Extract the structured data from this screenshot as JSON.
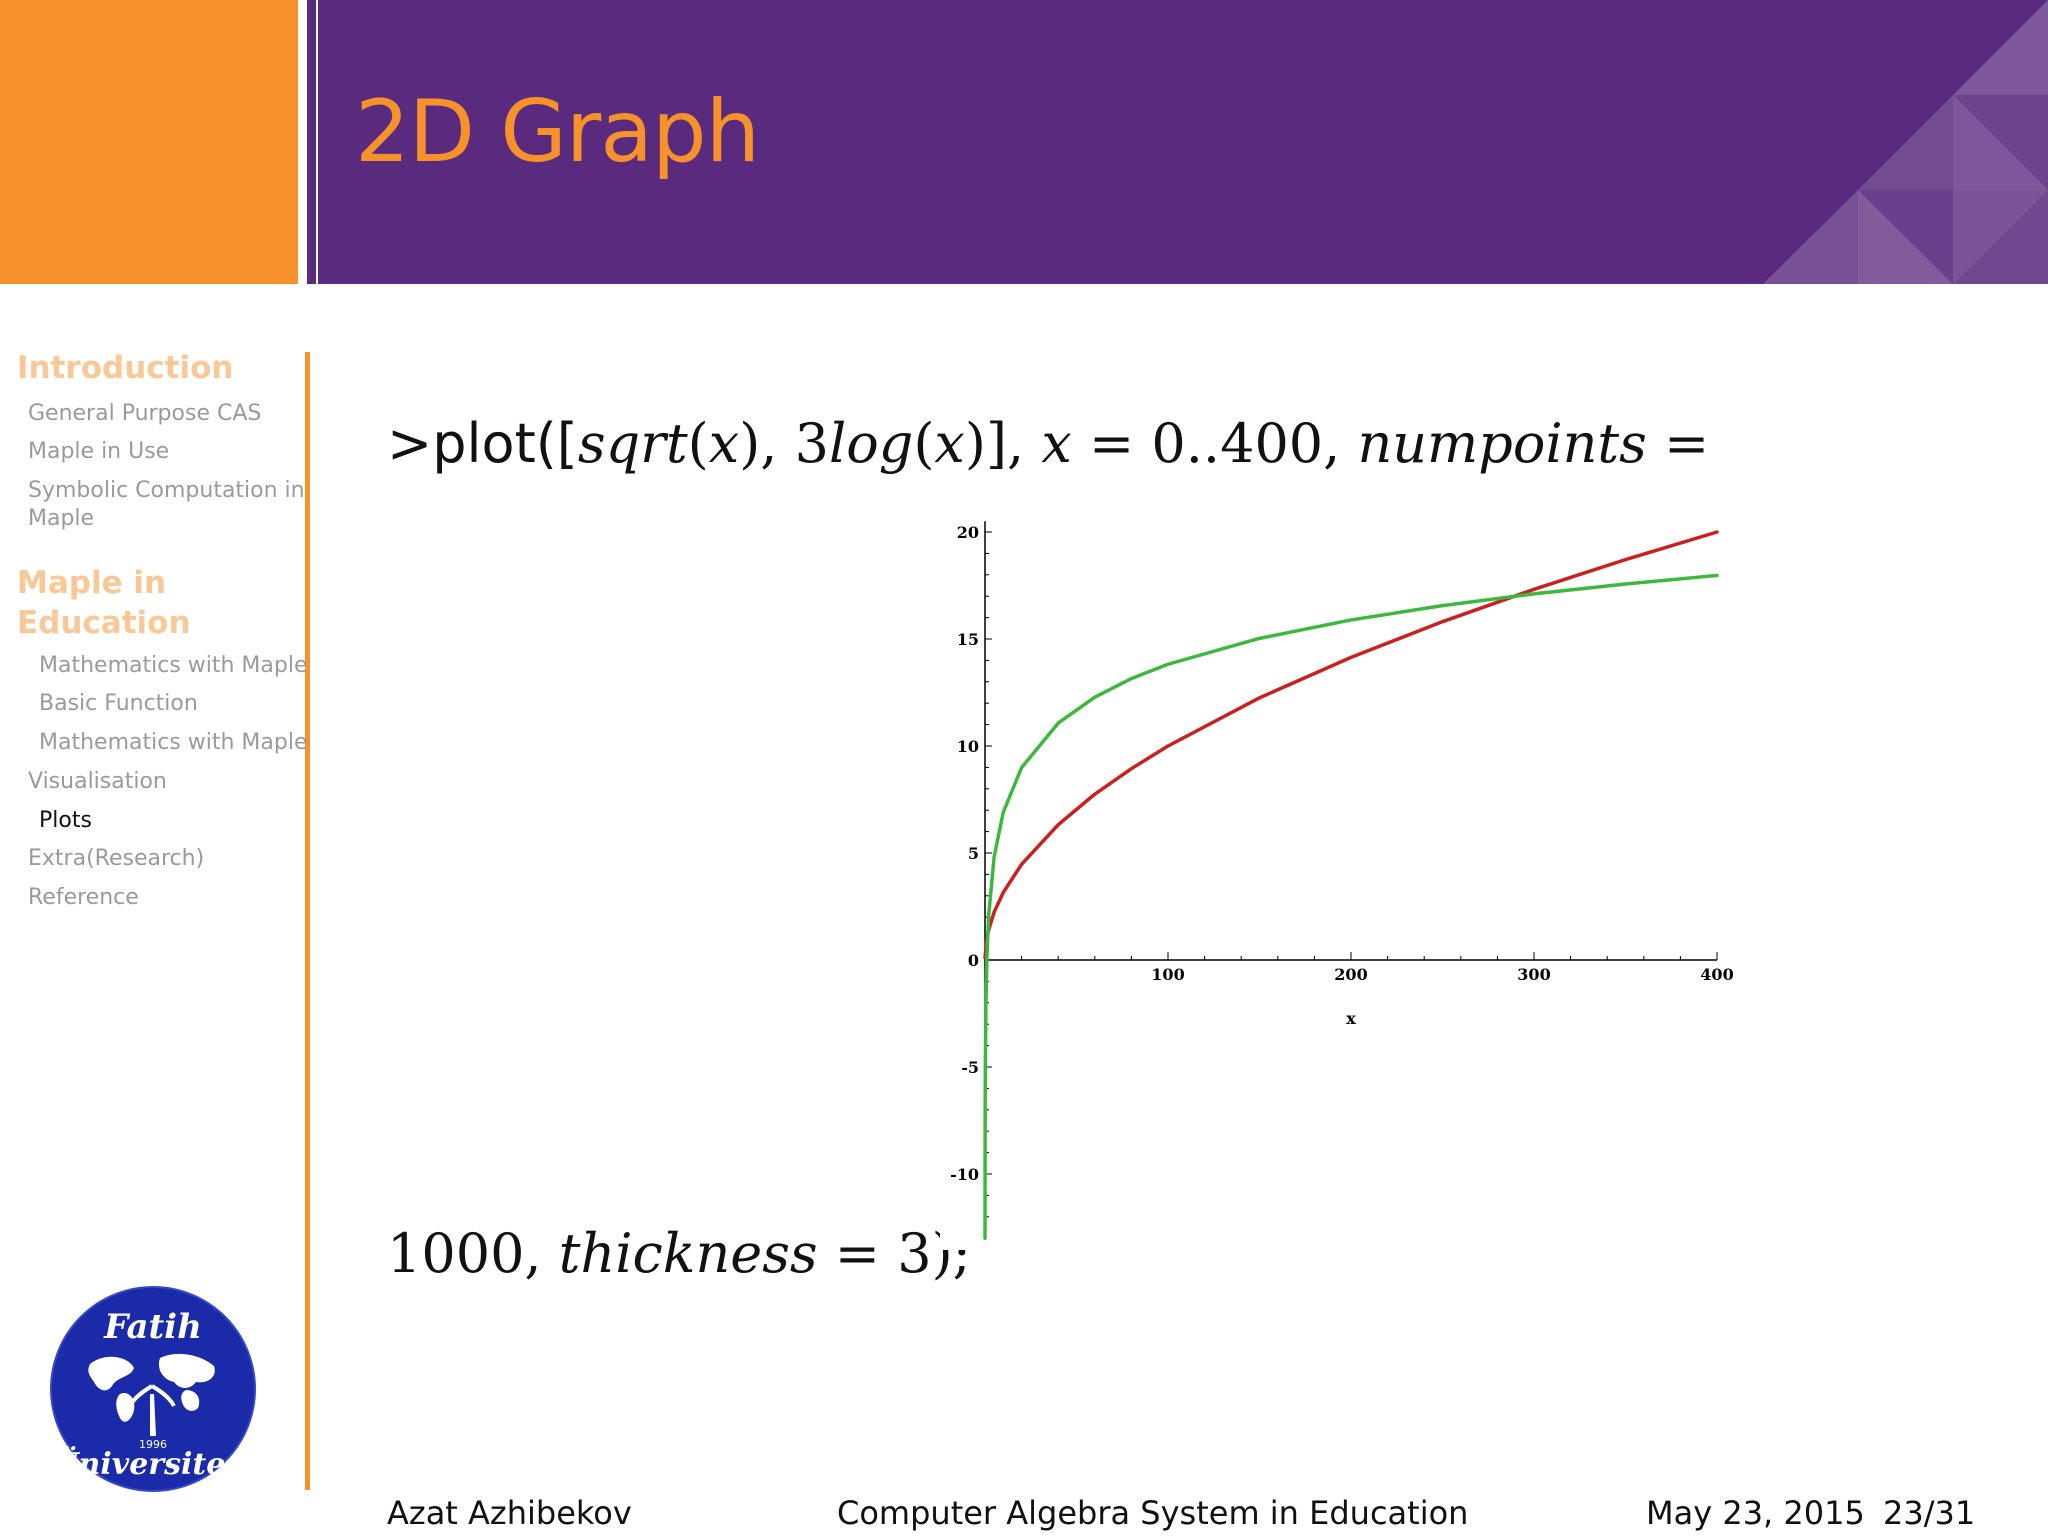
{
  "slide": {
    "title": "2D Graph"
  },
  "sidebar": {
    "sections": [
      {
        "label": "Introduction"
      },
      {
        "label_line1": "Maple in",
        "label_line2": "Education"
      }
    ],
    "items": [
      {
        "label": "General Purpose CAS"
      },
      {
        "label": "Maple in Use"
      },
      {
        "label_line1": "Symbolic Computation in",
        "label_line2": "Maple"
      },
      {
        "label": "Mathematics with Maple"
      },
      {
        "label": "Basic Function"
      },
      {
        "label": "Mathematics with Maple"
      },
      {
        "label": "Visualisation"
      },
      {
        "label": "Plots"
      },
      {
        "label": "Extra(Research)"
      },
      {
        "label": "Reference"
      }
    ],
    "active_item": "Plots"
  },
  "command": {
    "prefix": ">plot([",
    "f1": "sqrt",
    "p1": "(",
    "v1": "x",
    "p2": "), 3",
    "f2": "log",
    "p3": "(",
    "v2": "x",
    "p4": ")], ",
    "v3": "x",
    "eq1": " = 0..400, ",
    "opt1": "numpoints",
    "eq2": " =",
    "line2_num": "1000, ",
    "opt2": "thickness",
    "eq3": " = 3);"
  },
  "chart_data": {
    "type": "line",
    "xlabel": "x",
    "ylabel": "",
    "xlim": [
      0,
      400
    ],
    "ylim": [
      -12.5,
      20.5
    ],
    "x_ticks": [
      100,
      200,
      300,
      400
    ],
    "y_ticks": [
      -10,
      -5,
      0,
      5,
      10,
      15,
      20
    ],
    "grid": false,
    "series": [
      {
        "color": "#cc1f1f",
        "x": [
          0.01,
          1,
          2,
          5,
          10,
          20,
          40,
          60,
          80,
          100,
          150,
          200,
          250,
          300,
          350,
          400
        ],
        "values": [
          0.1,
          1,
          1.41,
          2.24,
          3.16,
          4.47,
          6.32,
          7.75,
          8.94,
          10,
          12.25,
          14.14,
          15.81,
          17.32,
          18.71,
          20
        ]
      },
      {
        "color": "#3cb83c",
        "x": [
          0.013,
          0.02,
          0.05,
          0.1,
          0.2,
          0.5,
          1,
          2,
          5,
          10,
          20,
          40,
          60,
          80,
          100,
          150,
          200,
          250,
          300,
          350,
          400
        ],
        "values": [
          -13,
          -11.7,
          -8.99,
          -6.91,
          -4.83,
          -2.08,
          0,
          2.08,
          4.83,
          6.91,
          8.99,
          11.07,
          12.28,
          13.15,
          13.82,
          15.03,
          15.89,
          16.56,
          17.11,
          17.57,
          17.97
        ]
      }
    ]
  },
  "footer": {
    "author": "Azat Azhibekov",
    "title": "Computer Algebra System in Education",
    "date": "May 23, 2015",
    "page": "23/31"
  },
  "colors": {
    "orange": "#f7922a",
    "purple": "#5a2a7e",
    "logo_blue": "#1a2aa8"
  },
  "logo": {
    "top_text": "Fatih",
    "bottom_text": "Üniversitesi",
    "year": "1996"
  }
}
